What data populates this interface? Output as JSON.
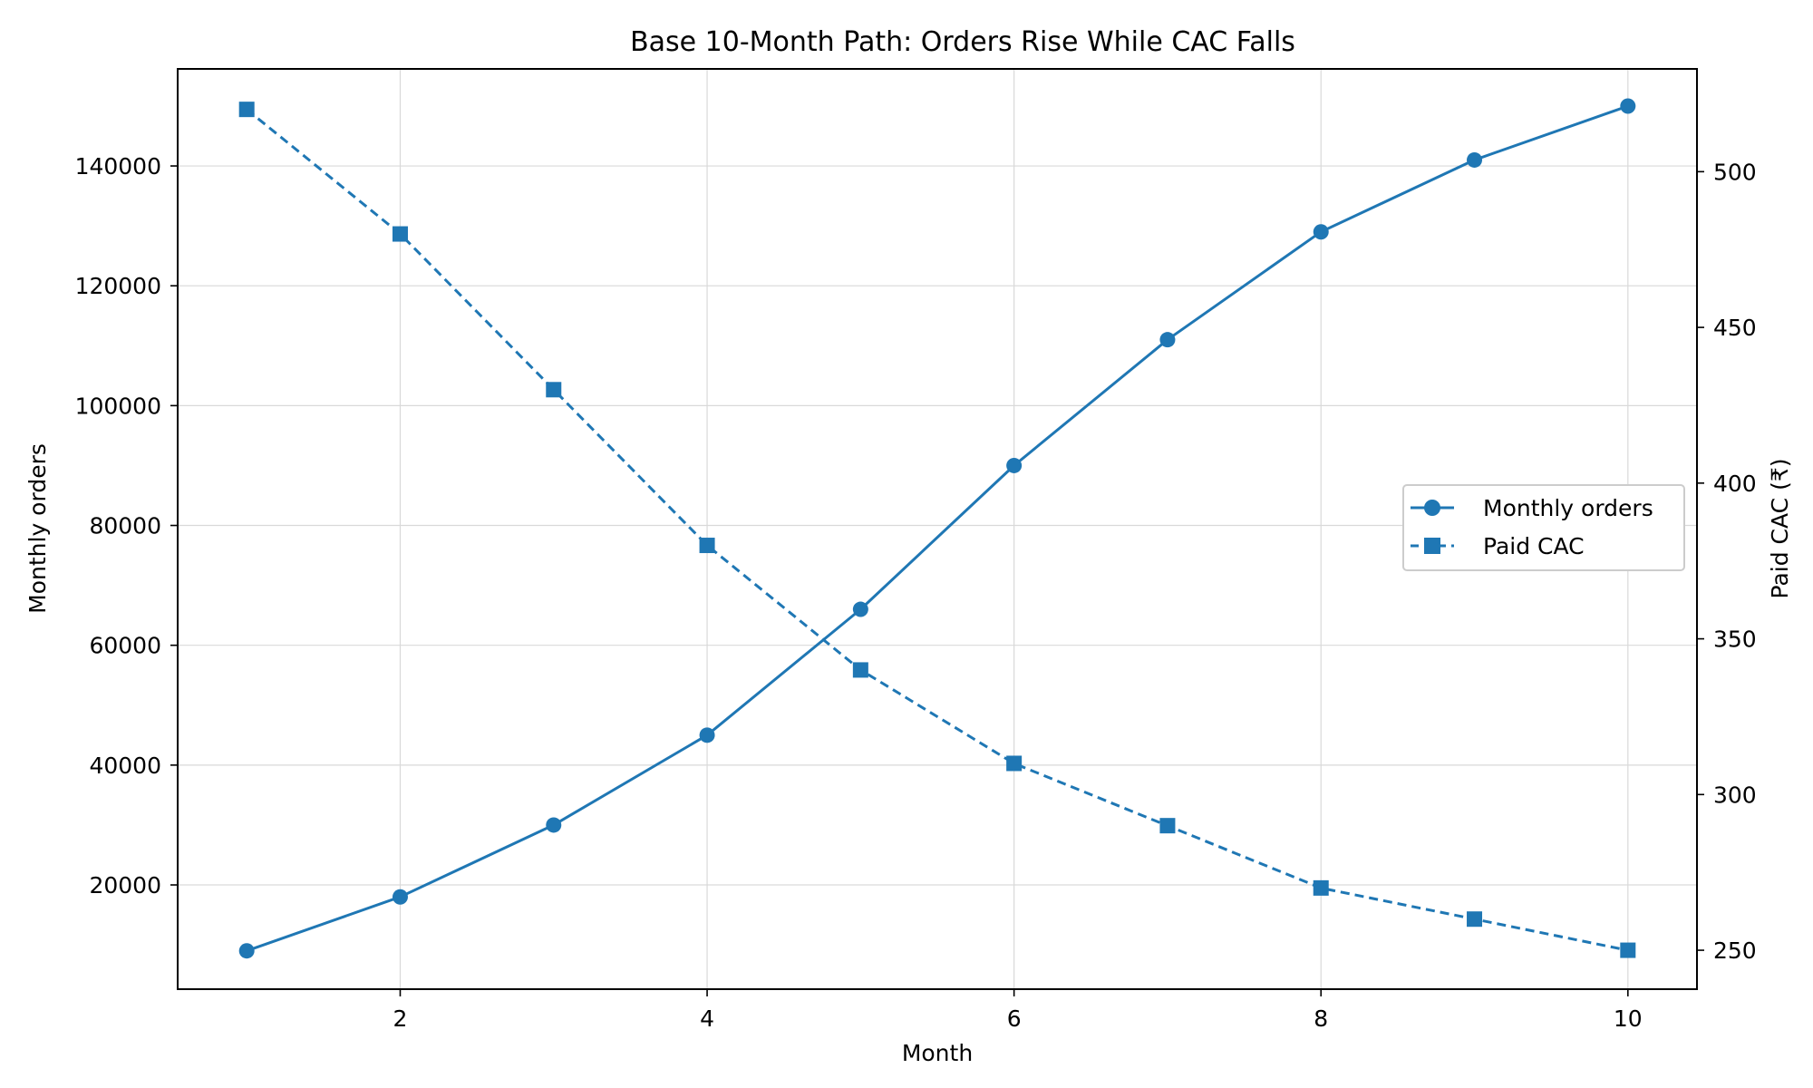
{
  "chart_data": {
    "type": "line",
    "title": "Base 10-Month Path: Orders Rise While CAC Falls",
    "xlabel": "Month",
    "ylabel_left": "Monthly orders",
    "ylabel_right": "Paid CAC (₹)",
    "x": [
      1,
      2,
      3,
      4,
      5,
      6,
      7,
      8,
      9,
      10
    ],
    "xlim": [
      0.55,
      10.45
    ],
    "ylim_left": [
      2600,
      156200
    ],
    "ylim_right": [
      237.5,
      533
    ],
    "x_ticks": [
      2,
      4,
      6,
      8,
      10
    ],
    "y_ticks_left": [
      20000,
      40000,
      60000,
      80000,
      100000,
      120000,
      140000
    ],
    "y_ticks_right": [
      250,
      300,
      350,
      400,
      450,
      500
    ],
    "grid": true,
    "legend_position": "center-right",
    "series": [
      {
        "name": "Monthly orders",
        "axis": "left",
        "values": [
          9000,
          18000,
          30000,
          45000,
          66000,
          90000,
          111000,
          129000,
          141000,
          150000
        ],
        "line_style": "solid",
        "marker": "circle",
        "color": "#1f77b4"
      },
      {
        "name": "Paid CAC",
        "axis": "right",
        "values": [
          520,
          480,
          430,
          380,
          340,
          310,
          290,
          270,
          260,
          250
        ],
        "line_style": "dashed",
        "marker": "square",
        "color": "#1f77b4"
      }
    ]
  }
}
